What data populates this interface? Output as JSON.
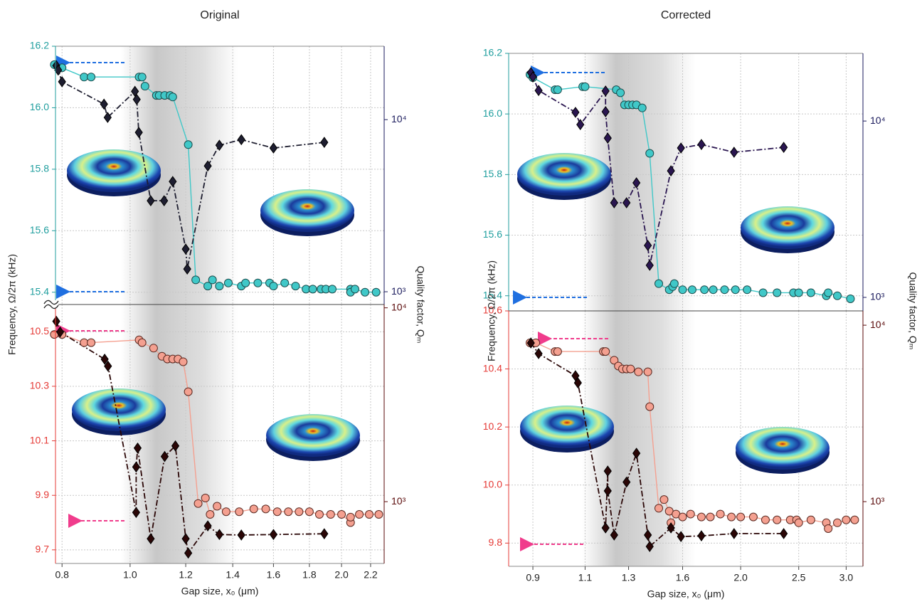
{
  "chart_data": [
    {
      "type": "line",
      "title": "Original",
      "xlog": true,
      "xlim": [
        0.783,
        2.3
      ],
      "ylim": [
        15.36,
        16.2
      ],
      "yticks": [
        15.4,
        15.6,
        15.8,
        {
          "value": 16,
          "label": "16.0"
        },
        16.2
      ],
      "y2log": true,
      "y2lim": [
        843,
        26700
      ],
      "y2ticks": [
        {
          "value": 1000,
          "label": "10³"
        },
        {
          "value": 10000,
          "label": "10⁴"
        }
      ],
      "grid": true,
      "axis_color": "#1f9e9e",
      "y2_axis_color": "#1a1a5c",
      "series": [
        {
          "color": "#40c8c8",
          "edgecolor": "#1c4c4c",
          "marker": "circle",
          "linestyle": "solid",
          "x": [
            0.78,
            0.8,
            0.86,
            0.88,
            1.03,
            1.04,
            1.05,
            1.09,
            1.1,
            1.12,
            1.14,
            1.15,
            1.21,
            1.24,
            1.29,
            1.31,
            1.34,
            1.38,
            1.44,
            1.46,
            1.52,
            1.58,
            1.6,
            1.66,
            1.72,
            1.78,
            1.82,
            1.87,
            1.9,
            1.94,
            2.06,
            2.06,
            2.09,
            2.16,
            2.24
          ],
          "values": [
            16.14,
            16.13,
            16.1,
            16.1,
            16.1,
            16.1,
            16.07,
            16.04,
            16.04,
            16.04,
            16.04,
            16.035,
            15.88,
            15.44,
            15.42,
            15.44,
            15.42,
            15.43,
            15.42,
            15.43,
            15.43,
            15.43,
            15.42,
            15.43,
            15.42,
            15.41,
            15.41,
            15.41,
            15.41,
            15.41,
            15.41,
            15.4,
            15.41,
            15.4,
            15.4
          ]
        },
        {
          "color": "#1e1e30",
          "edgecolor": "#000000",
          "marker": "diamond",
          "linestyle": "dashdot",
          "axis": "y2",
          "x": [
            0.785,
            0.79,
            0.8,
            0.918,
            0.929,
            1.016,
            1.022,
            1.029,
            1.07,
            1.118,
            1.15,
            1.2,
            1.206,
            1.29,
            1.34,
            1.44,
            1.6,
            1.89
          ],
          "values": [
            20600,
            19400,
            16600,
            12300,
            10300,
            14600,
            13100,
            8430,
            3380,
            3380,
            4370,
            1770,
            1355,
            5380,
            7100,
            7650,
            6840,
            7380
          ]
        }
      ]
    },
    {
      "type": "line",
      "xlog": true,
      "xlim": [
        0.783,
        2.3
      ],
      "xticks": [
        0.8,
        {
          "value": 1,
          "label": "1.0"
        },
        1.2,
        1.4,
        1.6,
        1.8,
        {
          "value": 2,
          "label": "2.0"
        },
        2.2
      ],
      "ylim": [
        9.65,
        10.6
      ],
      "yticks": [
        9.7,
        9.9,
        10.1,
        10.3,
        10.5
      ],
      "y2log": true,
      "y2lim": [
        480,
        10400
      ],
      "y2ticks": [
        {
          "value": 1000,
          "label": "10³"
        },
        {
          "value": 10000,
          "label": "10⁴"
        }
      ],
      "grid": true,
      "axis_color": "#e53935",
      "y2_axis_color": "#5a0a0a",
      "xlabel": "Gap size, x₀ (μm)",
      "ylabel": "Frequency, Ω/2π (kHz)",
      "y2label": "Quality factor, Qₘ",
      "series": [
        {
          "color": "#f4a090",
          "edgecolor": "#5a2a22",
          "marker": "circle",
          "linestyle": "solid",
          "x": [
            0.78,
            0.8,
            0.86,
            0.88,
            1.03,
            1.04,
            1.08,
            1.11,
            1.13,
            1.15,
            1.17,
            1.19,
            1.21,
            1.25,
            1.28,
            1.3,
            1.33,
            1.37,
            1.43,
            1.5,
            1.56,
            1.62,
            1.68,
            1.74,
            1.8,
            1.86,
            1.93,
            2.0,
            2.06,
            2.06,
            2.12,
            2.19,
            2.26
          ],
          "values": [
            10.49,
            10.49,
            10.46,
            10.46,
            10.47,
            10.46,
            10.44,
            10.41,
            10.4,
            10.4,
            10.4,
            10.39,
            10.28,
            9.87,
            9.89,
            9.83,
            9.86,
            9.84,
            9.84,
            9.85,
            9.85,
            9.84,
            9.84,
            9.84,
            9.84,
            9.83,
            9.83,
            9.83,
            9.8,
            9.82,
            9.83,
            9.83,
            9.83
          ]
        },
        {
          "color": "#2a0606",
          "edgecolor": "#000000",
          "marker": "diamond",
          "linestyle": "dashdot",
          "axis": "y2",
          "x": [
            0.785,
            0.795,
            0.92,
            0.93,
            1.02,
            1.02,
            1.025,
            1.07,
            1.12,
            1.16,
            1.2,
            1.21,
            1.29,
            1.34,
            1.44,
            1.6,
            1.89
          ],
          "values": [
            8520,
            7500,
            5430,
            5000,
            880,
            1510,
            1890,
            644,
            1710,
            1940,
            644,
            543,
            750,
            677,
            673,
            677,
            683
          ]
        }
      ]
    },
    {
      "type": "line",
      "title": "Corrected",
      "xlog": true,
      "xlim": [
        0.82,
        3.2
      ],
      "ylim": [
        15.35,
        16.2
      ],
      "yticks": [
        15.4,
        15.6,
        15.8,
        {
          "value": 16,
          "label": "16.0"
        },
        16.2
      ],
      "y2log": true,
      "y2lim": [
        838,
        24200
      ],
      "y2ticks": [
        {
          "value": 1000,
          "label": "10³"
        },
        {
          "value": 10000,
          "label": "10⁴"
        }
      ],
      "grid": true,
      "axis_color": "#1f9e9e",
      "y2_axis_color": "#1a1a5c",
      "series": [
        {
          "color": "#40c8c8",
          "edgecolor": "#1c4c4c",
          "marker": "circle",
          "linestyle": "solid",
          "x": [
            0.89,
            0.9,
            0.98,
            0.99,
            1.09,
            1.1,
            1.24,
            1.26,
            1.28,
            1.3,
            1.32,
            1.34,
            1.37,
            1.41,
            1.46,
            1.52,
            1.54,
            1.55,
            1.6,
            1.66,
            1.74,
            1.8,
            1.88,
            1.96,
            2.05,
            2.18,
            2.3,
            2.45,
            2.5,
            2.62,
            2.78,
            2.8,
            2.9,
            3.05
          ],
          "values": [
            16.13,
            16.12,
            16.08,
            16.08,
            16.09,
            16.09,
            16.08,
            16.07,
            16.03,
            16.03,
            16.03,
            16.03,
            16.02,
            15.87,
            15.44,
            15.42,
            15.43,
            15.44,
            15.42,
            15.42,
            15.42,
            15.42,
            15.42,
            15.42,
            15.42,
            15.41,
            15.41,
            15.41,
            15.41,
            15.41,
            15.4,
            15.41,
            15.4,
            15.39
          ]
        },
        {
          "color": "#2a1650",
          "edgecolor": "#000000",
          "marker": "diamond",
          "linestyle": "dashdot",
          "axis": "y2",
          "x": [
            0.893,
            0.9,
            0.92,
            1.06,
            1.08,
            1.19,
            1.19,
            1.2,
            1.23,
            1.29,
            1.34,
            1.4,
            1.41,
            1.53,
            1.59,
            1.72,
            1.95,
            2.36
          ],
          "values": [
            18800,
            17800,
            14900,
            11200,
            9550,
            14800,
            11300,
            8000,
            3440,
            3440,
            4460,
            1970,
            1520,
            5220,
            7030,
            7360,
            6650,
            7090
          ]
        }
      ]
    },
    {
      "type": "line",
      "xlog": true,
      "xlim": [
        0.82,
        3.2
      ],
      "xticks": [
        0.9,
        1.1,
        1.3,
        1.6,
        {
          "value": 2,
          "label": "2.0"
        },
        2.5,
        {
          "value": 3,
          "label": "3.0"
        }
      ],
      "ylim": [
        9.72,
        10.6
      ],
      "yticks": [
        9.8,
        {
          "value": 10,
          "label": "10.0"
        },
        10.2,
        10.4,
        10.6
      ],
      "y2log": true,
      "y2lim": [
        430,
        12050
      ],
      "y2ticks": [
        {
          "value": 1000,
          "label": "10³"
        },
        {
          "value": 10000,
          "label": "10⁴"
        }
      ],
      "grid": true,
      "axis_color": "#e53935",
      "y2_axis_color": "#5a0a0a",
      "xlabel": "Gap size, x₀ (μm)",
      "ylabel": "Frequency, Ω/2π (kHz)",
      "y2label": "Quality factor, Qₘ",
      "series": [
        {
          "color": "#f4a090",
          "edgecolor": "#5a2a22",
          "marker": "circle",
          "linestyle": "solid",
          "x": [
            0.89,
            0.91,
            0.98,
            0.99,
            1.18,
            1.19,
            1.23,
            1.25,
            1.27,
            1.29,
            1.31,
            1.35,
            1.4,
            1.41,
            1.46,
            1.49,
            1.52,
            1.53,
            1.56,
            1.6,
            1.65,
            1.72,
            1.78,
            1.85,
            1.93,
            2.0,
            2.1,
            2.2,
            2.3,
            2.42,
            2.48,
            2.5,
            2.62,
            2.78,
            2.8,
            2.9,
            3.0,
            3.1
          ],
          "values": [
            10.49,
            10.49,
            10.46,
            10.46,
            10.46,
            10.46,
            10.43,
            10.41,
            10.4,
            10.4,
            10.4,
            10.39,
            10.39,
            10.27,
            9.92,
            9.95,
            9.91,
            9.87,
            9.9,
            9.89,
            9.9,
            9.89,
            9.89,
            9.9,
            9.89,
            9.89,
            9.89,
            9.88,
            9.88,
            9.88,
            9.88,
            9.87,
            9.88,
            9.87,
            9.85,
            9.87,
            9.88,
            9.88
          ]
        },
        {
          "color": "#2a0606",
          "edgecolor": "#000000",
          "marker": "diamond",
          "linestyle": "dashdot",
          "axis": "y2",
          "x": [
            0.893,
            0.92,
            1.06,
            1.07,
            1.19,
            1.2,
            1.2,
            1.23,
            1.29,
            1.34,
            1.4,
            1.41,
            1.53,
            1.59,
            1.72,
            1.95,
            2.36
          ],
          "values": [
            7930,
            6900,
            5170,
            4710,
            710,
            1490,
            1150,
            647,
            1290,
            1880,
            647,
            557,
            710,
            634,
            640,
            659,
            659
          ]
        }
      ]
    }
  ]
}
